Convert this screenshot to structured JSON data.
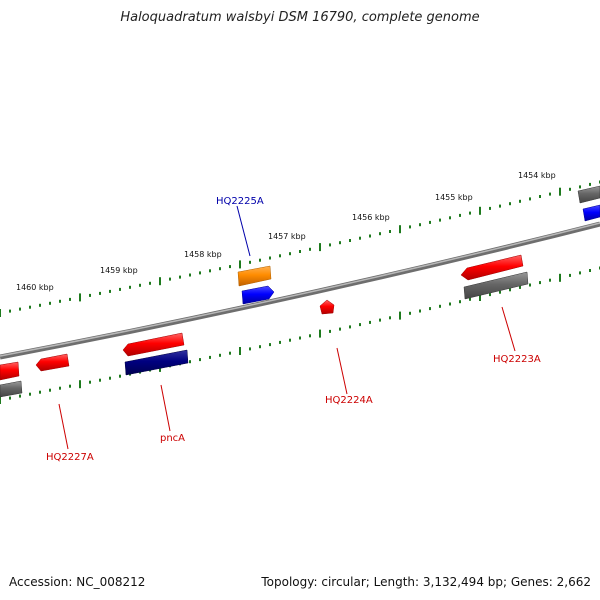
{
  "title": "Haloquadratum walsbyi DSM 16790, complete genome",
  "footer": {
    "accession": "Accession: NC_008212",
    "info": "Topology: circular; Length: 3,132,494 bp; Genes: 2,662"
  },
  "colors": {
    "backbone": "#808080",
    "tick": "#1e7a1e",
    "forward_cds": "#ff0000",
    "reverse_gene": "#666666",
    "blue_gene": "#0000ff",
    "navy_gene": "#000080",
    "orange_gene": "#ff8c00",
    "label_red": "#cc0000",
    "label_blue": "#0000aa"
  },
  "ticks": [
    "1454 kbp",
    "1455 kbp",
    "1456 kbp",
    "1457 kbp",
    "1458 kbp",
    "1459 kbp",
    "1460 kbp"
  ],
  "gene_labels": [
    "HQ2225A",
    "HQ2224A",
    "HQ2223A",
    "pncA",
    "HQ2227A"
  ]
}
